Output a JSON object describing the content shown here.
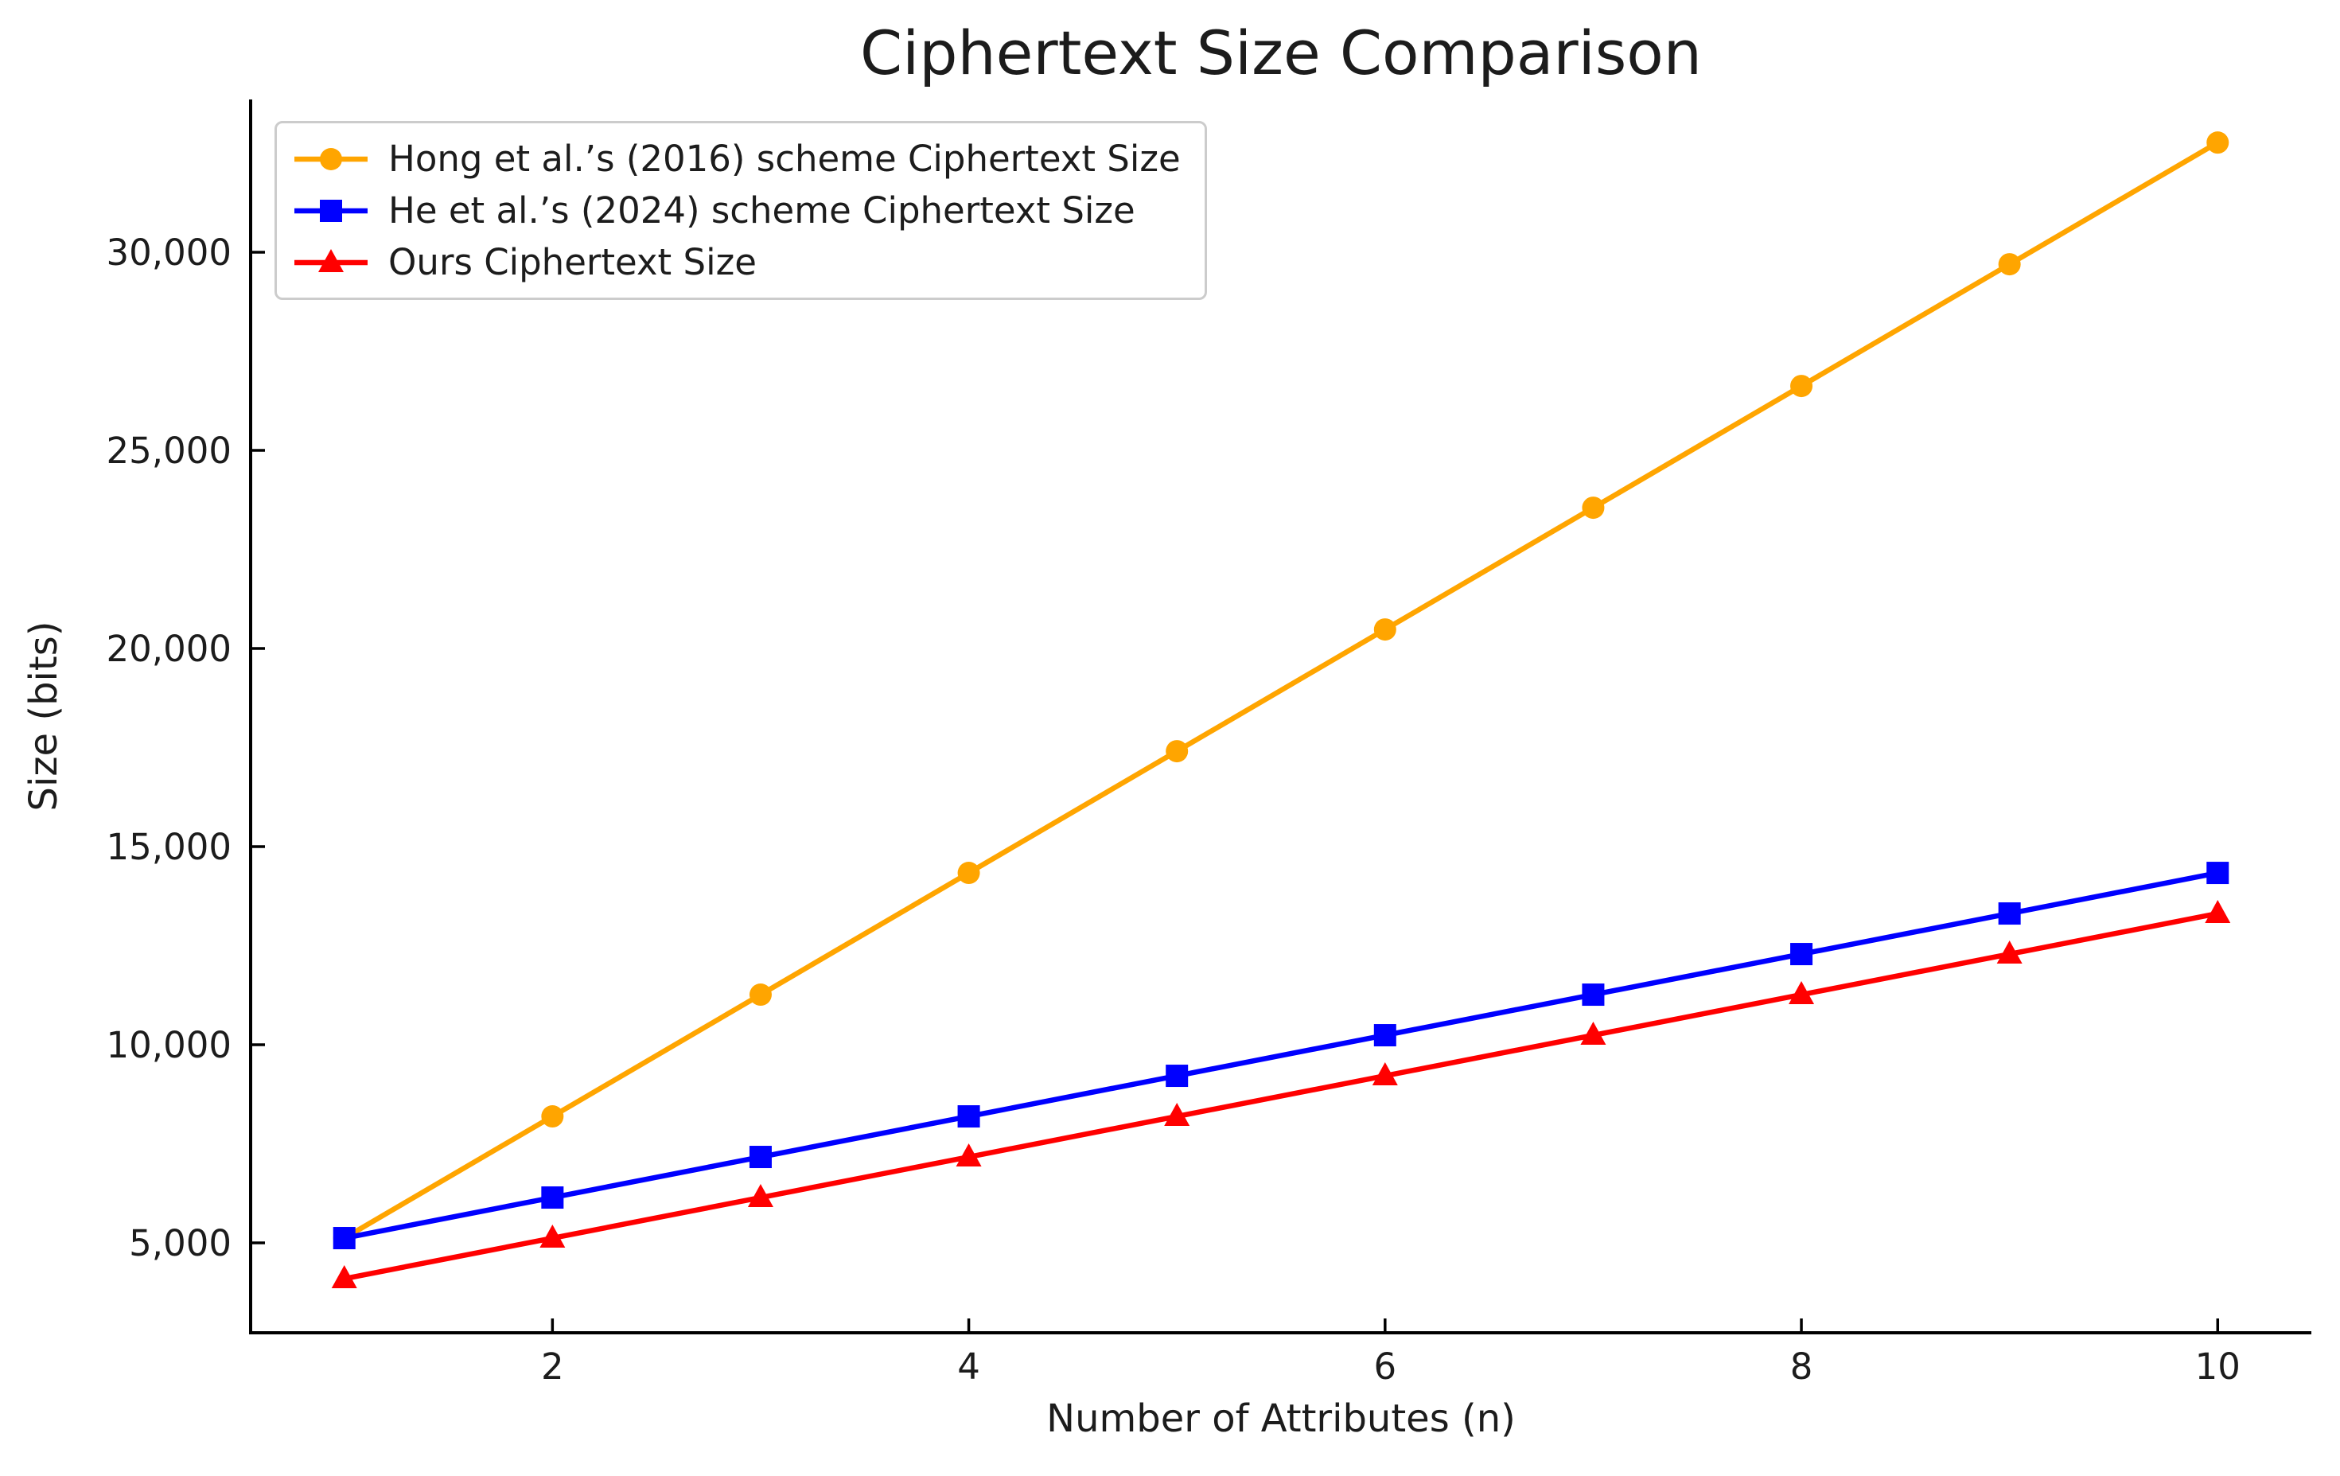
{
  "chart_data": {
    "type": "line",
    "title": "Ciphertext Size Comparison",
    "xlabel": "Number of Attributes (n)",
    "ylabel": "Size (bits)",
    "x": [
      1,
      2,
      3,
      4,
      5,
      6,
      7,
      8,
      9,
      10
    ],
    "series": [
      {
        "name": "Hong et al.’s (2016) scheme Ciphertext Size",
        "color": "#FFA500",
        "marker": "circle",
        "values": [
          5120,
          8192,
          11264,
          14336,
          17408,
          20480,
          23552,
          26624,
          29696,
          32768
        ]
      },
      {
        "name": "He et al.’s (2024) scheme Ciphertext Size",
        "color": "#0000FF",
        "marker": "square",
        "values": [
          5120,
          6144,
          7168,
          8192,
          9216,
          10240,
          11264,
          12288,
          13312,
          14336
        ]
      },
      {
        "name": "Ours Ciphertext Size",
        "color": "#FF0000",
        "marker": "triangle",
        "values": [
          4096,
          5120,
          6144,
          7168,
          8192,
          9216,
          10240,
          11264,
          12288,
          13312
        ]
      }
    ],
    "xlim": [
      0.55,
      10.45
    ],
    "ylim": [
      2731,
      33855
    ],
    "xticks": {
      "values": [
        2,
        4,
        6,
        8,
        10
      ],
      "labels": [
        "2",
        "4",
        "6",
        "8",
        "10"
      ]
    },
    "yticks": {
      "values": [
        5000,
        10000,
        15000,
        20000,
        25000,
        30000
      ],
      "labels": [
        "5,000",
        "10,000",
        "15,000",
        "20,000",
        "25,000",
        "30,000"
      ]
    },
    "legend_position": "upper left",
    "grid": false,
    "spines": {
      "top": false,
      "right": false,
      "left": true,
      "bottom": true
    },
    "tick_direction": "in",
    "colors": {
      "axis": "#000000",
      "text": "#1c1c1c",
      "legend_border": "#cccccc",
      "background": "#ffffff"
    }
  }
}
